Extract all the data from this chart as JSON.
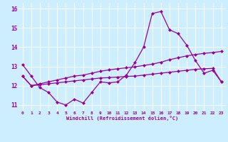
{
  "xlabel": "Windchill (Refroidissement éolien,°C)",
  "background_color": "#cceeff",
  "grid_color": "#ffffff",
  "line_color": "#990099",
  "xlim": [
    -0.5,
    23.5
  ],
  "ylim": [
    10.7,
    16.3
  ],
  "yticks": [
    11,
    12,
    13,
    14,
    15,
    16
  ],
  "ytick_labels": [
    "11",
    "12",
    "13",
    "14",
    "15",
    "16"
  ],
  "xticks": [
    0,
    1,
    2,
    3,
    4,
    5,
    6,
    7,
    8,
    9,
    10,
    11,
    12,
    13,
    14,
    15,
    16,
    17,
    18,
    19,
    20,
    21,
    22,
    23
  ],
  "xtick_labels": [
    "0",
    "1",
    "2",
    "3",
    "4",
    "5",
    "6",
    "7",
    "8",
    "9",
    "10",
    "11",
    "12",
    "13",
    "14",
    "15",
    "16",
    "17",
    "18",
    "19",
    "20",
    "21",
    "22",
    "23"
  ],
  "series1": [
    13.1,
    12.5,
    11.9,
    11.65,
    11.15,
    11.0,
    11.3,
    11.1,
    11.65,
    12.2,
    12.15,
    12.2,
    12.55,
    13.2,
    14.0,
    15.75,
    15.85,
    14.9,
    14.7,
    14.1,
    13.3,
    12.65,
    12.8,
    12.2
  ],
  "series2": [
    12.5,
    12.0,
    12.1,
    12.2,
    12.3,
    12.4,
    12.5,
    12.55,
    12.65,
    12.75,
    12.82,
    12.88,
    12.93,
    12.98,
    13.05,
    13.12,
    13.22,
    13.35,
    13.45,
    13.55,
    13.62,
    13.68,
    13.72,
    13.78
  ],
  "series3": [
    12.5,
    12.0,
    12.05,
    12.1,
    12.15,
    12.2,
    12.25,
    12.3,
    12.35,
    12.4,
    12.42,
    12.45,
    12.48,
    12.5,
    12.55,
    12.6,
    12.65,
    12.7,
    12.75,
    12.8,
    12.85,
    12.88,
    12.9,
    12.2
  ],
  "marker": "D",
  "markersize": 2.5,
  "linewidth": 0.9
}
